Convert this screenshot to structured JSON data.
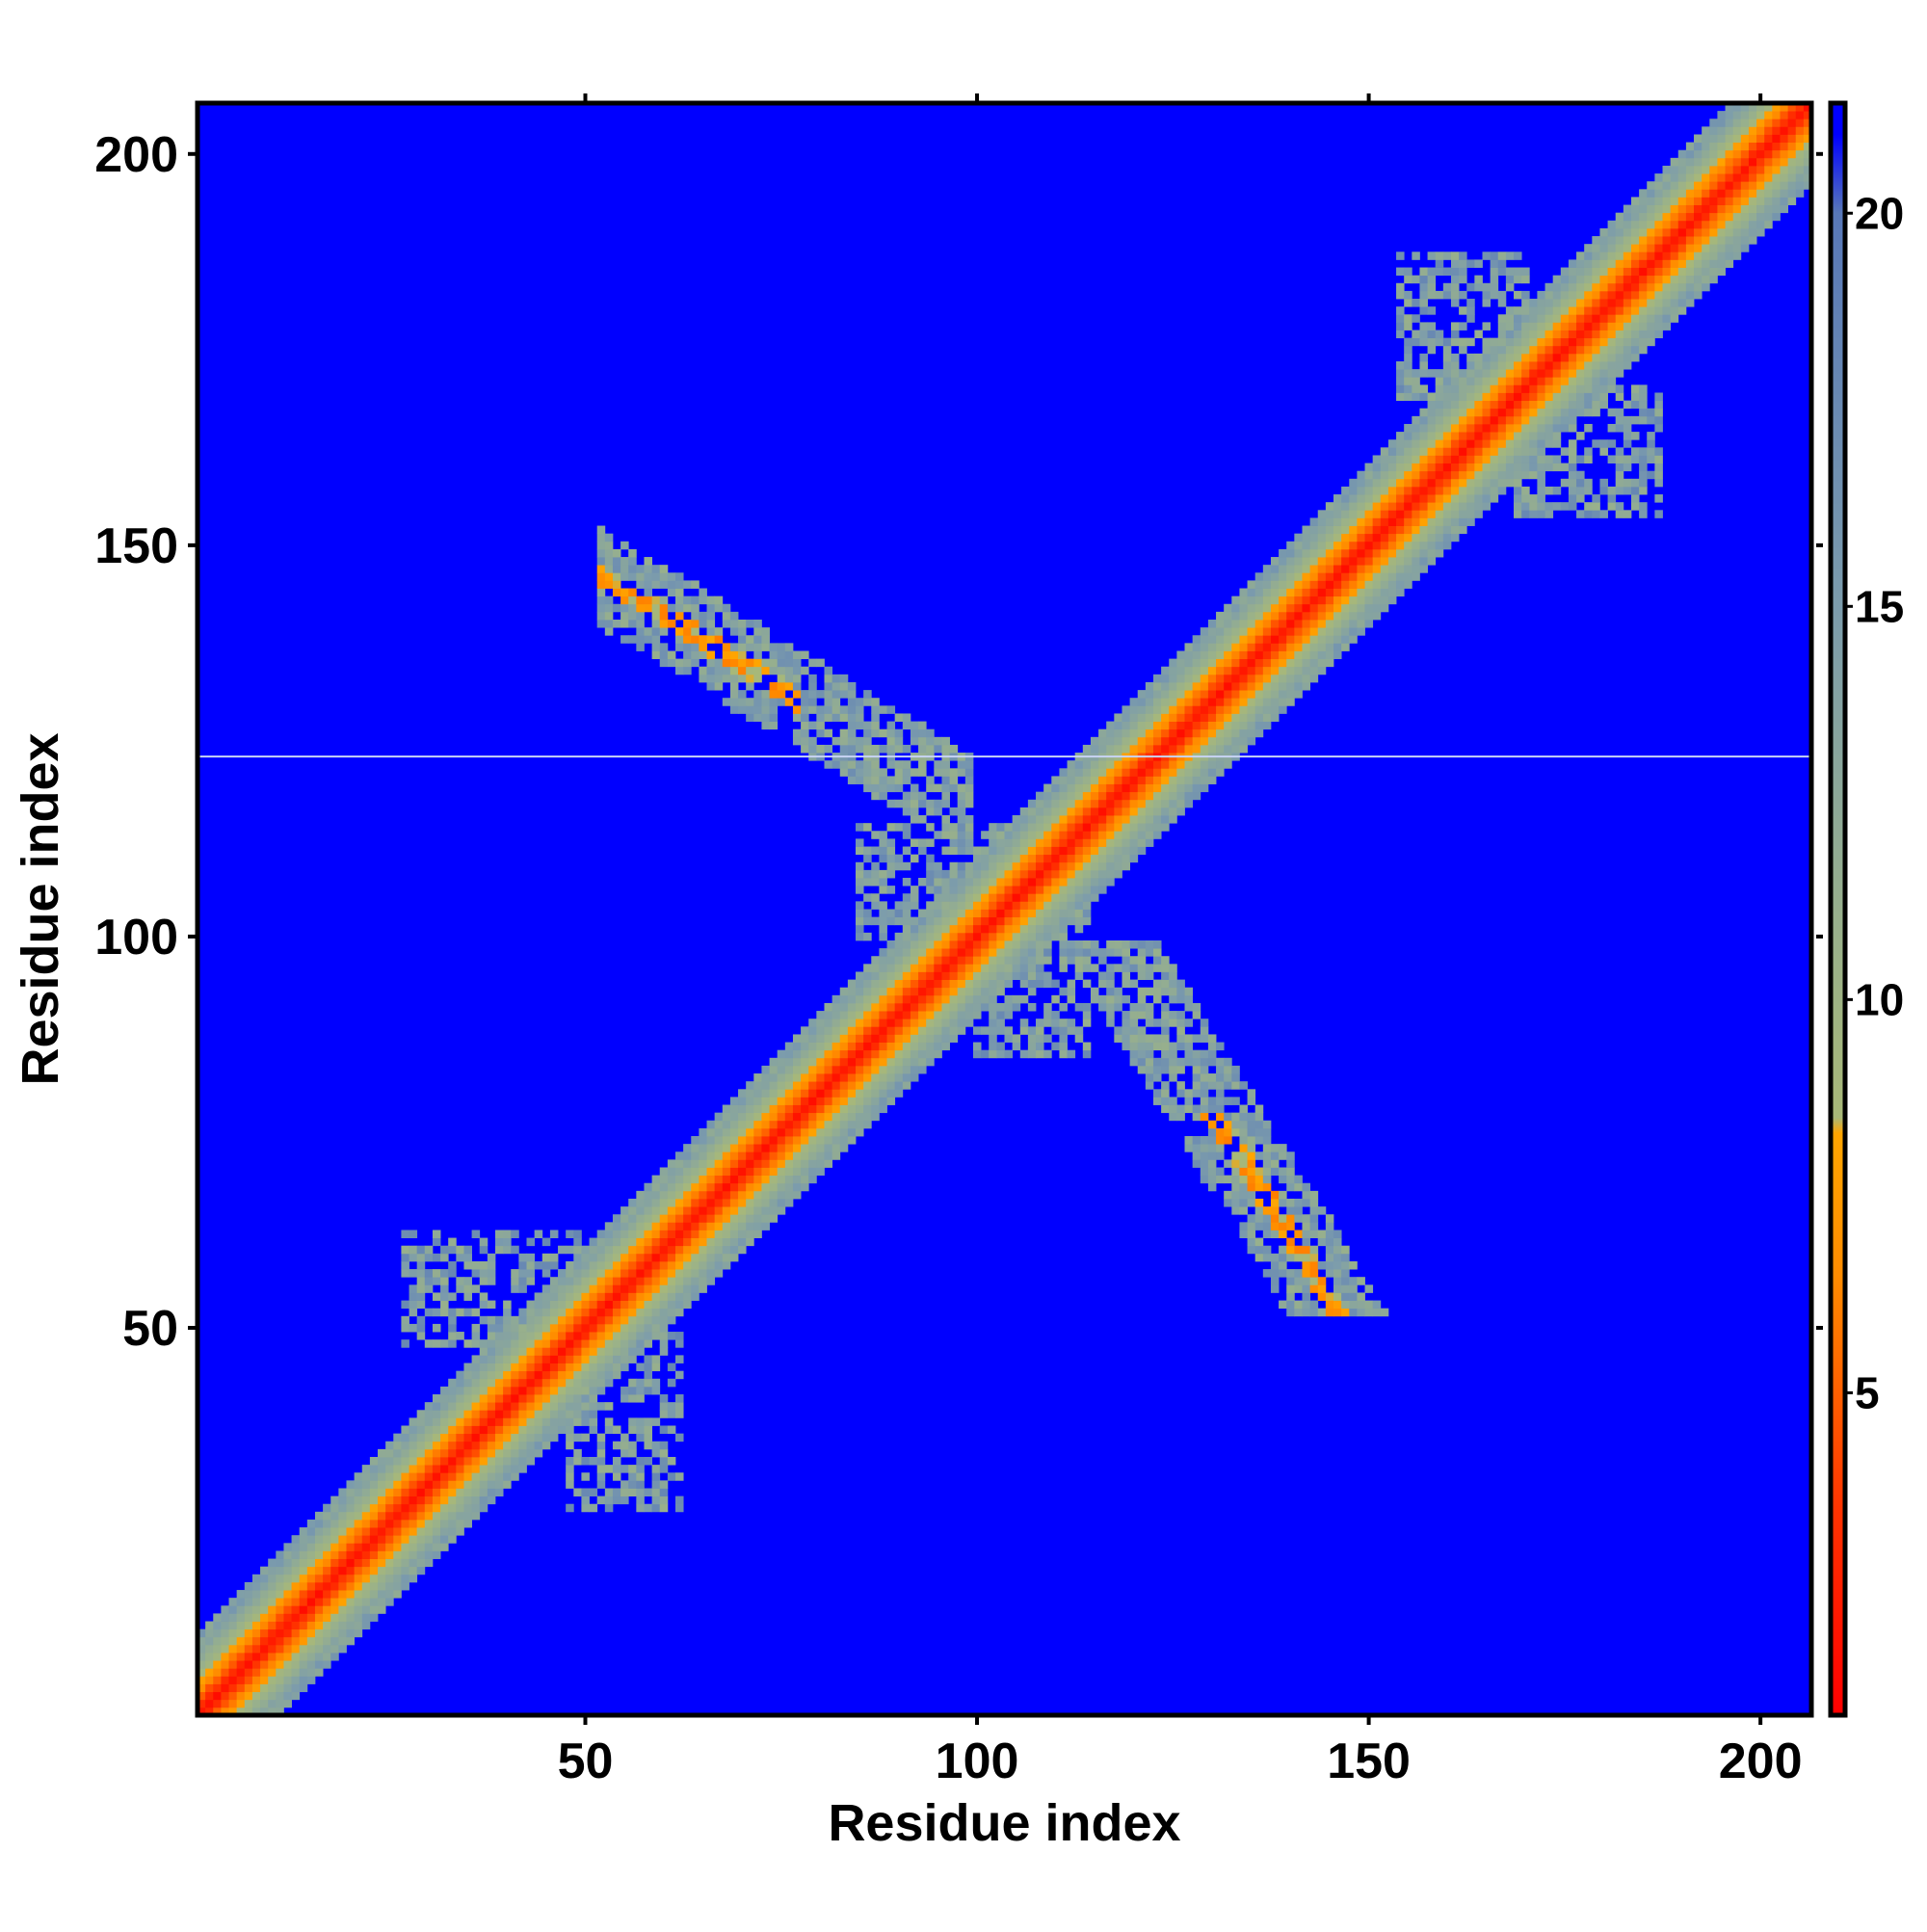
{
  "chart_data": {
    "type": "heatmap",
    "title": "",
    "xlabel": "Residue index",
    "ylabel": "Residue index",
    "n_residues": 206,
    "xlim": [
      1,
      206
    ],
    "ylim": [
      1,
      206
    ],
    "x_ticks": [
      50,
      100,
      150,
      200
    ],
    "y_ticks": [
      50,
      100,
      150,
      200
    ],
    "x_tick_labels": [
      "50",
      "100",
      "150",
      "200"
    ],
    "y_tick_labels": [
      "50",
      "100",
      "150",
      "200"
    ],
    "colorbar": {
      "range": [
        0.9,
        21.4
      ],
      "ticks": [
        5,
        10,
        15,
        20
      ],
      "tick_labels": [
        "5",
        "10",
        "15",
        "20"
      ],
      "stops": [
        {
          "value": 0.9,
          "color": "#ff0000"
        },
        {
          "value": 3.5,
          "color": "#ff3300"
        },
        {
          "value": 6.5,
          "color": "#ff8c00"
        },
        {
          "value": 8.3,
          "color": "#ffa500"
        },
        {
          "value": 8.5,
          "color": "#a8b878"
        },
        {
          "value": 11.0,
          "color": "#98b08c"
        },
        {
          "value": 15.0,
          "color": "#7c9cac"
        },
        {
          "value": 20.0,
          "color": "#5878b8"
        },
        {
          "value": 21.0,
          "color": "#0000ff"
        }
      ]
    },
    "background_value": 21.4,
    "background_color": "#0000ff",
    "features": [
      {
        "kind": "diagonal_band",
        "from": 1,
        "to": 206,
        "core_value": 1.5,
        "half_width": 9
      },
      {
        "kind": "contact_cluster",
        "i_range": [
          50,
          100
        ],
        "j_range": [
          115,
          150
        ],
        "min_value": 6,
        "description": "antiparallel"
      },
      {
        "kind": "contact_cluster",
        "i_range": [
          15,
          66
        ],
        "j_range": [
          15,
          66
        ],
        "min_value": 12
      },
      {
        "kind": "contact_cluster",
        "i_range": [
          150,
          185
        ],
        "j_range": [
          150,
          185
        ],
        "min_value": 12
      },
      {
        "kind": "contact_cluster",
        "i_range": [
          85,
          120
        ],
        "j_range": [
          85,
          120
        ],
        "min_value": 11
      }
    ],
    "horizontal_line_at": 123,
    "horizontal_line_color": "#c8d4f4"
  }
}
